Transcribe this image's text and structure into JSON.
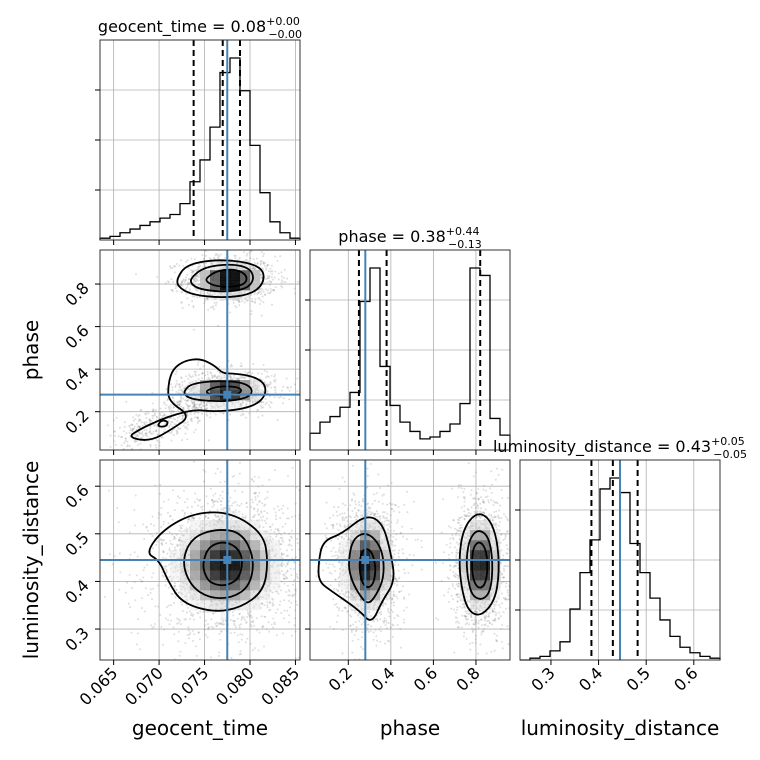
{
  "chart_data": {
    "type": "corner",
    "truth_color": "#4682b4",
    "parameters": [
      {
        "name": "geocent_time",
        "axis_label": "geocent_time",
        "range": [
          0.0635,
          0.0855
        ],
        "ticks": [
          0.065,
          0.07,
          0.075,
          0.08,
          0.085
        ],
        "tick_labels": [
          "0.065",
          "0.070",
          "0.075",
          "0.080",
          "0.085"
        ],
        "truth": 0.0775,
        "quantiles": [
          0.0738,
          0.077,
          0.0789
        ],
        "title": {
          "prefix": "geocent_time = ",
          "value": "0.08",
          "upper": "+0.00",
          "lower": "−0.00"
        },
        "hist_edges": [
          0.0635,
          0.0646,
          0.0657,
          0.0668,
          0.0679,
          0.069,
          0.0701,
          0.0712,
          0.0723,
          0.0734,
          0.0745,
          0.0756,
          0.0767,
          0.0778,
          0.0789,
          0.08,
          0.0811,
          0.0822,
          0.0833,
          0.0844,
          0.0855
        ],
        "hist_counts": [
          0.01,
          0.02,
          0.04,
          0.06,
          0.08,
          0.1,
          0.12,
          0.14,
          0.2,
          0.32,
          0.44,
          0.62,
          0.92,
          1.0,
          0.82,
          0.52,
          0.26,
          0.1,
          0.04,
          0.01
        ]
      },
      {
        "name": "phase",
        "axis_label": "phase",
        "range": [
          0.02,
          0.96
        ],
        "ticks": [
          0.2,
          0.4,
          0.6,
          0.8
        ],
        "tick_labels": [
          "0.2",
          "0.4",
          "0.6",
          "0.8"
        ],
        "truth": 0.28,
        "quantiles": [
          0.25,
          0.38,
          0.82
        ],
        "title": {
          "prefix": "phase = ",
          "value": "0.38",
          "upper": "+0.44",
          "lower": "−0.13"
        },
        "hist_edges": [
          0.02,
          0.067,
          0.114,
          0.161,
          0.208,
          0.255,
          0.302,
          0.349,
          0.396,
          0.443,
          0.49,
          0.537,
          0.584,
          0.631,
          0.678,
          0.725,
          0.772,
          0.819,
          0.866,
          0.913,
          0.96
        ],
        "hist_counts": [
          0.09,
          0.15,
          0.18,
          0.23,
          0.31,
          0.8,
          0.98,
          0.45,
          0.24,
          0.15,
          0.1,
          0.06,
          0.07,
          0.1,
          0.14,
          0.25,
          0.98,
          0.94,
          0.17,
          0.08
        ]
      },
      {
        "name": "luminosity_distance",
        "axis_label": "luminosity_distance",
        "range": [
          0.235,
          0.655
        ],
        "ticks": [
          0.3,
          0.4,
          0.5,
          0.6
        ],
        "tick_labels": [
          "0.3",
          "0.4",
          "0.5",
          "0.6"
        ],
        "truth": 0.445,
        "quantiles": [
          0.385,
          0.43,
          0.482
        ],
        "title": {
          "prefix": "luminosity_distance = ",
          "value": "0.43",
          "upper": "+0.05",
          "lower": "−0.05"
        },
        "hist_edges": [
          0.235,
          0.256,
          0.277,
          0.298,
          0.319,
          0.34,
          0.361,
          0.382,
          0.403,
          0.424,
          0.445,
          0.466,
          0.487,
          0.508,
          0.529,
          0.55,
          0.571,
          0.592,
          0.613,
          0.634,
          0.655
        ],
        "hist_counts": [
          0.0,
          0.01,
          0.02,
          0.05,
          0.1,
          0.28,
          0.48,
          0.66,
          0.94,
          1.0,
          0.92,
          0.64,
          0.48,
          0.34,
          0.22,
          0.13,
          0.07,
          0.04,
          0.02,
          0.01
        ]
      }
    ],
    "joint": [
      {
        "x": 0,
        "y": 1,
        "modes": [
          {
            "mx": 0.0778,
            "my": 0.82,
            "sx": 0.0016,
            "sy": 0.035,
            "w": 1.0,
            "n": 1200
          },
          {
            "mx": 0.0774,
            "my": 0.3,
            "sx": 0.0017,
            "sy": 0.03,
            "w": 0.9,
            "n": 900
          }
        ],
        "tail": {
          "from": [
            0.066,
            0.06
          ],
          "to": [
            0.0765,
            0.29
          ],
          "spread": [
            0.0015,
            0.04
          ],
          "n": 500
        },
        "contours": [
          [
            [
              0.072,
              0.83
            ],
            [
              0.073,
              0.89
            ],
            [
              0.076,
              0.915
            ],
            [
              0.0795,
              0.905
            ],
            [
              0.0815,
              0.87
            ],
            [
              0.0815,
              0.8
            ],
            [
              0.08,
              0.75
            ],
            [
              0.077,
              0.735
            ],
            [
              0.0735,
              0.75
            ],
            [
              0.072,
              0.79
            ]
          ],
          [
            [
              0.0735,
              0.83
            ],
            [
              0.075,
              0.88
            ],
            [
              0.078,
              0.895
            ],
            [
              0.08,
              0.875
            ],
            [
              0.0805,
              0.82
            ],
            [
              0.0795,
              0.775
            ],
            [
              0.077,
              0.762
            ],
            [
              0.0745,
              0.775
            ],
            [
              0.0735,
              0.8
            ]
          ],
          [
            [
              0.0752,
              0.83
            ],
            [
              0.0765,
              0.865
            ],
            [
              0.0785,
              0.87
            ],
            [
              0.0797,
              0.84
            ],
            [
              0.0795,
              0.8
            ],
            [
              0.078,
              0.785
            ],
            [
              0.0762,
              0.79
            ],
            [
              0.0752,
              0.81
            ]
          ],
          [
            [
              0.071,
              0.33
            ],
            [
              0.0715,
              0.4
            ],
            [
              0.0728,
              0.44
            ],
            [
              0.0745,
              0.45
            ],
            [
              0.076,
              0.42
            ],
            [
              0.077,
              0.38
            ],
            [
              0.078,
              0.38
            ],
            [
              0.08,
              0.37
            ],
            [
              0.0815,
              0.34
            ],
            [
              0.0818,
              0.29
            ],
            [
              0.081,
              0.24
            ],
            [
              0.079,
              0.21
            ],
            [
              0.076,
              0.2
            ],
            [
              0.074,
              0.21
            ],
            [
              0.072,
              0.19
            ],
            [
              0.07,
              0.16
            ],
            [
              0.068,
              0.12
            ],
            [
              0.0665,
              0.08
            ],
            [
              0.069,
              0.06
            ],
            [
              0.0715,
              0.12
            ],
            [
              0.0735,
              0.18
            ],
            [
              0.071,
              0.25
            ]
          ],
          [
            [
              0.0728,
              0.3
            ],
            [
              0.0735,
              0.33
            ],
            [
              0.076,
              0.345
            ],
            [
              0.079,
              0.34
            ],
            [
              0.0803,
              0.31
            ],
            [
              0.08,
              0.27
            ],
            [
              0.078,
              0.25
            ],
            [
              0.0755,
              0.25
            ],
            [
              0.0735,
              0.26
            ],
            [
              0.0728,
              0.28
            ]
          ],
          [
            [
              0.0752,
              0.3
            ],
            [
              0.0765,
              0.32
            ],
            [
              0.0785,
              0.318
            ],
            [
              0.0792,
              0.3
            ],
            [
              0.0785,
              0.278
            ],
            [
              0.0765,
              0.275
            ],
            [
              0.0753,
              0.285
            ]
          ],
          [
            [
              0.0698,
              0.13
            ],
            [
              0.0702,
              0.16
            ],
            [
              0.071,
              0.155
            ],
            [
              0.0708,
              0.13
            ]
          ]
        ]
      },
      {
        "x": 0,
        "y": 2,
        "modes": [
          {
            "mx": 0.0774,
            "my": 0.435,
            "sx": 0.0025,
            "sy": 0.045,
            "w": 1.0,
            "n": 2200
          }
        ],
        "contours": [
          [
            [
              0.0685,
              0.46
            ],
            [
              0.0705,
              0.51
            ],
            [
              0.074,
              0.545
            ],
            [
              0.078,
              0.545
            ],
            [
              0.0815,
              0.5
            ],
            [
              0.082,
              0.44
            ],
            [
              0.0815,
              0.38
            ],
            [
              0.079,
              0.345
            ],
            [
              0.076,
              0.335
            ],
            [
              0.0725,
              0.355
            ],
            [
              0.071,
              0.4
            ],
            [
              0.07,
              0.445
            ]
          ],
          [
            [
              0.0725,
              0.44
            ],
            [
              0.0735,
              0.49
            ],
            [
              0.076,
              0.51
            ],
            [
              0.079,
              0.505
            ],
            [
              0.0805,
              0.45
            ],
            [
              0.08,
              0.39
            ],
            [
              0.078,
              0.365
            ],
            [
              0.0755,
              0.365
            ],
            [
              0.0735,
              0.39
            ]
          ],
          [
            [
              0.0748,
              0.44
            ],
            [
              0.0755,
              0.475
            ],
            [
              0.0775,
              0.485
            ],
            [
              0.0792,
              0.46
            ],
            [
              0.079,
              0.41
            ],
            [
              0.0775,
              0.39
            ],
            [
              0.0757,
              0.395
            ],
            [
              0.075,
              0.415
            ]
          ]
        ]
      },
      {
        "x": 1,
        "y": 2,
        "modes": [
          {
            "mx": 0.29,
            "my": 0.435,
            "sx": 0.05,
            "sy": 0.045,
            "w": 1.0,
            "n": 1400
          },
          {
            "mx": 0.82,
            "my": 0.435,
            "sx": 0.04,
            "sy": 0.045,
            "w": 1.0,
            "n": 1400
          }
        ],
        "contours": [
          [
            [
              0.06,
              0.44
            ],
            [
              0.08,
              0.485
            ],
            [
              0.17,
              0.5
            ],
            [
              0.28,
              0.54
            ],
            [
              0.36,
              0.525
            ],
            [
              0.4,
              0.46
            ],
            [
              0.42,
              0.4
            ],
            [
              0.36,
              0.36
            ],
            [
              0.31,
              0.31
            ],
            [
              0.25,
              0.34
            ],
            [
              0.12,
              0.38
            ],
            [
              0.06,
              0.4
            ]
          ],
          [
            [
              0.2,
              0.44
            ],
            [
              0.22,
              0.49
            ],
            [
              0.29,
              0.505
            ],
            [
              0.36,
              0.47
            ],
            [
              0.37,
              0.41
            ],
            [
              0.33,
              0.37
            ],
            [
              0.29,
              0.35
            ],
            [
              0.24,
              0.38
            ],
            [
              0.21,
              0.41
            ]
          ],
          [
            [
              0.25,
              0.44
            ],
            [
              0.27,
              0.47
            ],
            [
              0.31,
              0.465
            ],
            [
              0.33,
              0.43
            ],
            [
              0.32,
              0.395
            ],
            [
              0.29,
              0.385
            ],
            [
              0.26,
              0.4
            ]
          ],
          [
            [
              0.72,
              0.45
            ],
            [
              0.74,
              0.51
            ],
            [
              0.8,
              0.545
            ],
            [
              0.86,
              0.535
            ],
            [
              0.9,
              0.49
            ],
            [
              0.91,
              0.42
            ],
            [
              0.89,
              0.36
            ],
            [
              0.82,
              0.325
            ],
            [
              0.76,
              0.34
            ],
            [
              0.73,
              0.39
            ]
          ],
          [
            [
              0.755,
              0.45
            ],
            [
              0.77,
              0.49
            ],
            [
              0.81,
              0.51
            ],
            [
              0.86,
              0.495
            ],
            [
              0.88,
              0.44
            ],
            [
              0.87,
              0.38
            ],
            [
              0.83,
              0.36
            ],
            [
              0.78,
              0.37
            ],
            [
              0.76,
              0.41
            ]
          ],
          [
            [
              0.78,
              0.445
            ],
            [
              0.79,
              0.475
            ],
            [
              0.82,
              0.485
            ],
            [
              0.85,
              0.465
            ],
            [
              0.855,
              0.42
            ],
            [
              0.84,
              0.39
            ],
            [
              0.81,
              0.385
            ],
            [
              0.785,
              0.405
            ]
          ]
        ]
      }
    ]
  }
}
